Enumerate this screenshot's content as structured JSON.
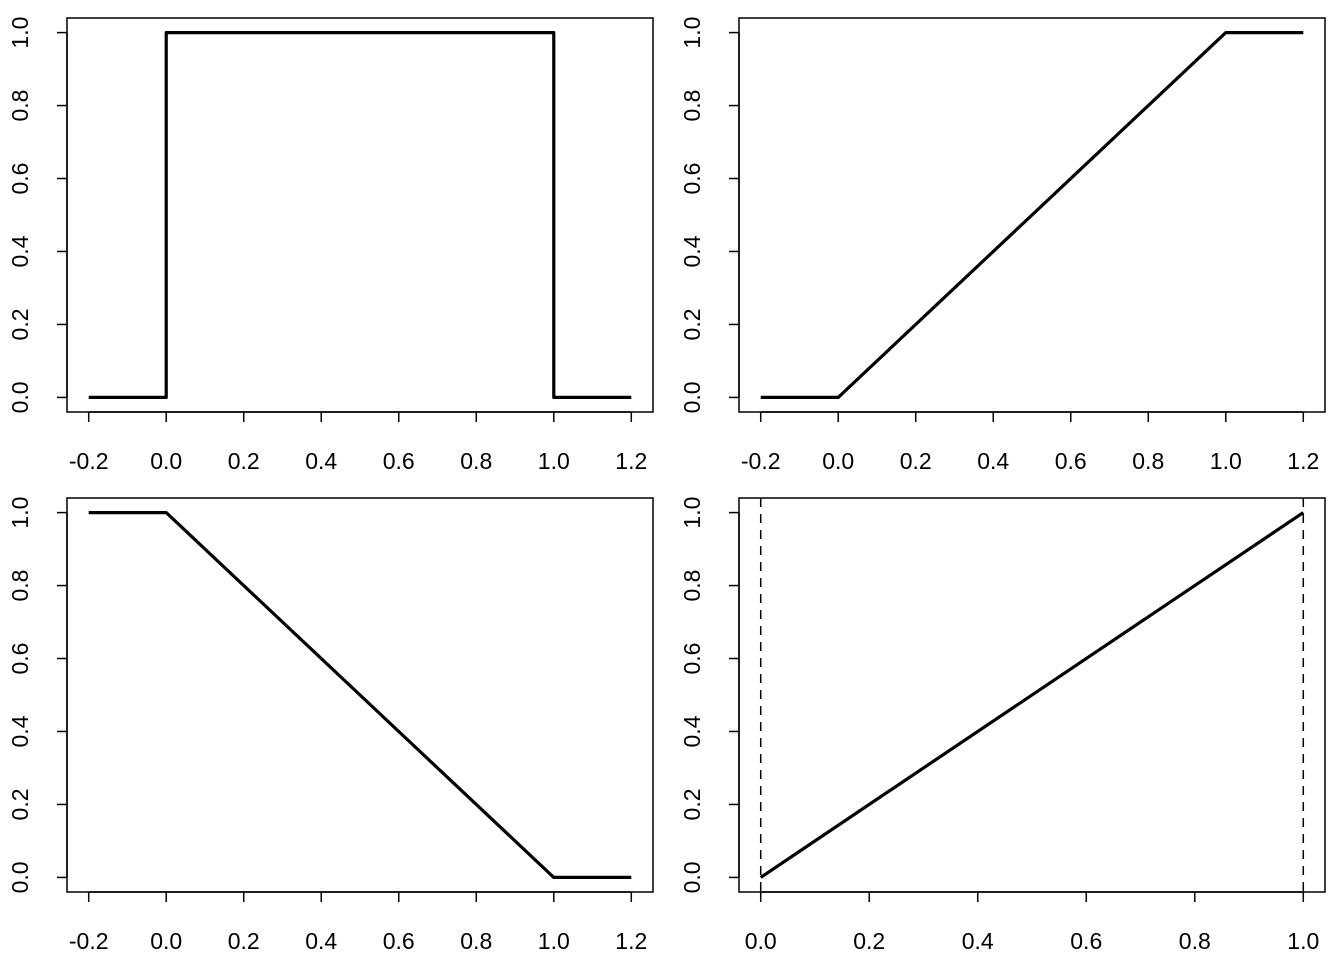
{
  "chart_data": [
    {
      "type": "line",
      "x": [
        -0.2,
        0,
        0,
        1,
        1,
        1.2
      ],
      "values": [
        0,
        0,
        1,
        1,
        0,
        0
      ],
      "color": "#000000",
      "xlim": [
        -0.256,
        1.256
      ],
      "ylim": [
        -0.04,
        1.04
      ],
      "xticks": [
        -0.2,
        {
          "value": 0,
          "label": "0.0"
        },
        0.2,
        0.4,
        0.6,
        0.8,
        {
          "value": 1,
          "label": "1.0"
        },
        1.2
      ],
      "yticks": [
        {
          "value": 0,
          "label": "0.0"
        },
        0.2,
        0.4,
        0.6,
        0.8,
        {
          "value": 1,
          "label": "1.0"
        }
      ]
    },
    {
      "type": "line",
      "x": [
        -0.2,
        0,
        1,
        1.2
      ],
      "values": [
        0,
        0,
        1,
        1
      ],
      "color": "#000000",
      "xlim": [
        -0.256,
        1.256
      ],
      "ylim": [
        -0.04,
        1.04
      ],
      "xticks": [
        -0.2,
        {
          "value": 0,
          "label": "0.0"
        },
        0.2,
        0.4,
        0.6,
        0.8,
        {
          "value": 1,
          "label": "1.0"
        },
        1.2
      ],
      "yticks": [
        {
          "value": 0,
          "label": "0.0"
        },
        0.2,
        0.4,
        0.6,
        0.8,
        {
          "value": 1,
          "label": "1.0"
        }
      ]
    },
    {
      "type": "line",
      "x": [
        -0.2,
        0,
        1,
        1.2
      ],
      "values": [
        1,
        1,
        0,
        0
      ],
      "color": "#000000",
      "xlim": [
        -0.256,
        1.256
      ],
      "ylim": [
        -0.04,
        1.04
      ],
      "xticks": [
        -0.2,
        {
          "value": 0,
          "label": "0.0"
        },
        0.2,
        0.4,
        0.6,
        0.8,
        {
          "value": 1,
          "label": "1.0"
        },
        1.2
      ],
      "yticks": [
        {
          "value": 0,
          "label": "0.0"
        },
        0.2,
        0.4,
        0.6,
        0.8,
        {
          "value": 1,
          "label": "1.0"
        }
      ]
    },
    {
      "type": "line",
      "x": [
        0,
        1
      ],
      "values": [
        0,
        1
      ],
      "color": "#000000",
      "xlim": [
        -0.04,
        1.04
      ],
      "ylim": [
        -0.04,
        1.04
      ],
      "xticks": [
        {
          "value": 0,
          "label": "0.0"
        },
        0.2,
        0.4,
        0.6,
        0.8,
        {
          "value": 1,
          "label": "1.0"
        }
      ],
      "yticks": [
        {
          "value": 0,
          "label": "0.0"
        },
        0.2,
        0.4,
        0.6,
        0.8,
        {
          "value": 1,
          "label": "1.0"
        }
      ],
      "vlines": [
        0,
        1
      ],
      "vline_style": "dashed"
    }
  ]
}
